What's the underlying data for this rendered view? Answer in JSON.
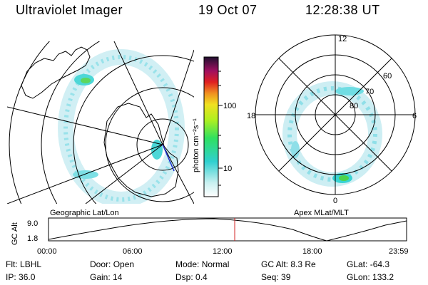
{
  "header": {
    "title": "Ultraviolet Imager",
    "date": "19 Oct 07",
    "time": "12:28:38 UT"
  },
  "colorbar": {
    "label": "photon cm⁻²s⁻¹",
    "ticks": [
      "100",
      "10"
    ]
  },
  "left_map": {
    "caption": "Geographic Lat/Lon"
  },
  "right_map": {
    "caption": "Apex MLat/MLT",
    "mlt_labels": [
      "12",
      "18",
      "6",
      "0"
    ],
    "lat_labels": [
      "60",
      "70",
      "80"
    ]
  },
  "altitude_plot": {
    "ylabel": "GC Alt",
    "yticks": [
      "9.0",
      "1.8"
    ],
    "xticks": [
      "00:00",
      "06:00",
      "12:00",
      "18:00",
      "23:59"
    ],
    "current_time_fraction": 0.52
  },
  "info": {
    "row1": [
      {
        "label": "Flt:",
        "value": "LBHL"
      },
      {
        "label": "Door:",
        "value": "Open"
      },
      {
        "label": "Mode:",
        "value": "Normal"
      },
      {
        "label": "GC Alt:",
        "value": "8.3 Re"
      },
      {
        "label": "GLat:",
        "value": "-64.3"
      }
    ],
    "row2": [
      {
        "label": "IP:",
        "value": "36.0"
      },
      {
        "label": "Gain:",
        "value": "14"
      },
      {
        "label": "Dsp:",
        "value": "0.4"
      },
      {
        "label": "Seq:",
        "value": "39"
      },
      {
        "label": "GLon:",
        "value": "133.2"
      }
    ]
  },
  "colors": {
    "aurora": "#bfe9f0",
    "aurora_strong": "#39d3d3",
    "hot": "#4cd34c",
    "marker": "#d11a1a"
  }
}
